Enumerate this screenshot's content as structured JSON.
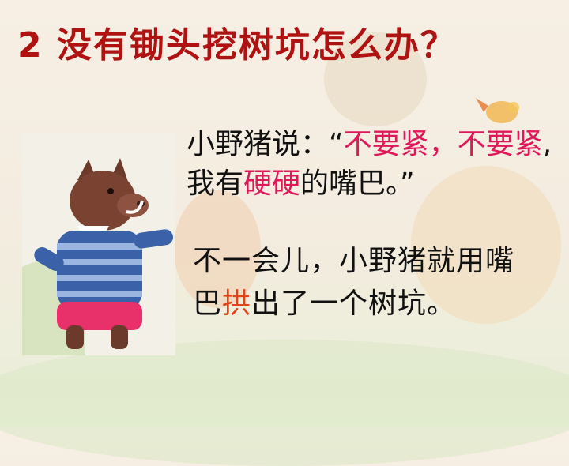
{
  "slide": {
    "title": "2  没有锄头挖树坑怎么办？"
  },
  "paragraph1": {
    "speaker": "小野猪说：",
    "open_quote": "“",
    "highlight1": "不要紧，不要紧",
    "comma": ",",
    "part2": "我有",
    "highlight2": "硬硬",
    "part3": "的嘴巴。",
    "close_quote": "”"
  },
  "paragraph2": {
    "part1": "不一会儿，小野猪就用嘴巴",
    "highlight": "拱",
    "part2": "出了一个树坑。"
  },
  "colors": {
    "title": "#b01212",
    "highlight_pink": "#e0185a",
    "highlight_orange": "#e2441a",
    "body_text": "#111111"
  }
}
